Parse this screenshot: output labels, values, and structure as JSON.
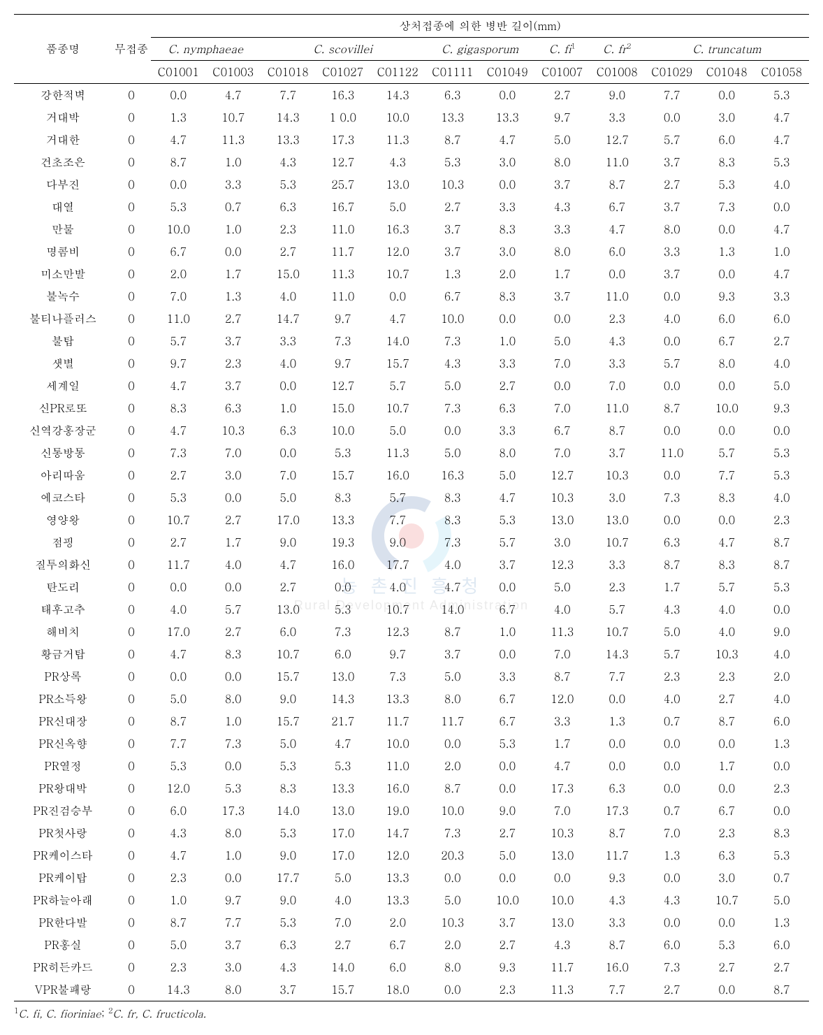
{
  "header": {
    "top_title": "상처접종에 의한 병반 길이(mm)",
    "col_variety": "품종명",
    "col_control": "무접종",
    "species": [
      {
        "label": "C. nymphaeae",
        "span": 2,
        "sup": ""
      },
      {
        "label": "C. scovillei",
        "span": 3,
        "sup": ""
      },
      {
        "label": "C. gigasporum",
        "span": 2,
        "sup": ""
      },
      {
        "label": "C. fi",
        "span": 1,
        "sup": "1"
      },
      {
        "label": "C. fr",
        "span": 1,
        "sup": "2"
      },
      {
        "label": "C. truncatum",
        "span": 3,
        "sup": ""
      }
    ],
    "codes": [
      "C01001",
      "C01003",
      "C01018",
      "C01027",
      "C01122",
      "C01111",
      "C01049",
      "C01007",
      "C01008",
      "C01029",
      "C01048",
      "C01058"
    ]
  },
  "rows": [
    {
      "name": "강한적벽",
      "ctrl": "0",
      "v": [
        "0.0",
        "4.7",
        "7.7",
        "16.3",
        "14.3",
        "6.3",
        "0.0",
        "2.7",
        "9.0",
        "7.7",
        "0.0",
        "5.3"
      ]
    },
    {
      "name": "거대박",
      "ctrl": "0",
      "v": [
        "1.3",
        "10.7",
        "14.3",
        "1 0.0",
        "10.0",
        "13.3",
        "13.3",
        "9.7",
        "3.3",
        "0.0",
        "3.0",
        "4.7"
      ]
    },
    {
      "name": "거대한",
      "ctrl": "0",
      "v": [
        "4.7",
        "11.3",
        "13.3",
        "17.3",
        "11.3",
        "8.7",
        "4.7",
        "5.0",
        "12.7",
        "5.7",
        "6.0",
        "4.7"
      ]
    },
    {
      "name": "건초조은",
      "ctrl": "0",
      "v": [
        "8.7",
        "1.0",
        "4.3",
        "12.7",
        "4.3",
        "5.3",
        "3.0",
        "8.0",
        "11.0",
        "3.7",
        "8.3",
        "5.3"
      ]
    },
    {
      "name": "다부진",
      "ctrl": "0",
      "v": [
        "0.0",
        "3.3",
        "5.3",
        "25.7",
        "13.0",
        "10.3",
        "0.0",
        "3.7",
        "8.7",
        "2.7",
        "5.3",
        "4.0"
      ]
    },
    {
      "name": "대열",
      "ctrl": "0",
      "v": [
        "5.3",
        "0.7",
        "6.3",
        "16.7",
        "5.0",
        "2.7",
        "3.3",
        "4.3",
        "6.7",
        "3.7",
        "7.3",
        "0.0"
      ]
    },
    {
      "name": "만물",
      "ctrl": "0",
      "v": [
        "10.0",
        "1.0",
        "2.3",
        "11.0",
        "16.3",
        "3.7",
        "8.3",
        "3.3",
        "4.7",
        "8.0",
        "0.0",
        "4.7"
      ]
    },
    {
      "name": "명콤비",
      "ctrl": "0",
      "v": [
        "6.7",
        "0.0",
        "2.7",
        "11.7",
        "12.0",
        "3.7",
        "3.0",
        "8.0",
        "6.0",
        "3.3",
        "1.3",
        "1.0"
      ]
    },
    {
      "name": "미소만발",
      "ctrl": "0",
      "v": [
        "2.0",
        "1.7",
        "15.0",
        "11.3",
        "10.7",
        "1.3",
        "2.0",
        "1.7",
        "0.0",
        "3.7",
        "0.0",
        "4.7"
      ]
    },
    {
      "name": "불녹수",
      "ctrl": "0",
      "v": [
        "7.0",
        "1.3",
        "4.0",
        "11.0",
        "0.0",
        "6.7",
        "8.3",
        "3.7",
        "11.0",
        "0.0",
        "9.3",
        "3.3"
      ]
    },
    {
      "name": "불티나플러스",
      "ctrl": "0",
      "v": [
        "11.0",
        "2.7",
        "14.7",
        "9.7",
        "4.7",
        "10.0",
        "0.0",
        "0.0",
        "2.3",
        "4.0",
        "6.0",
        "6.0"
      ]
    },
    {
      "name": "불탑",
      "ctrl": "0",
      "v": [
        "5.7",
        "3.7",
        "3.3",
        "7.3",
        "14.0",
        "7.3",
        "1.0",
        "5.0",
        "4.3",
        "0.0",
        "6.7",
        "2.7"
      ]
    },
    {
      "name": "샛별",
      "ctrl": "0",
      "v": [
        "9.7",
        "2.3",
        "4.0",
        "9.7",
        "15.7",
        "4.3",
        "3.3",
        "7.0",
        "3.3",
        "5.7",
        "8.0",
        "4.0"
      ]
    },
    {
      "name": "세계일",
      "ctrl": "0",
      "v": [
        "4.7",
        "3.7",
        "0.0",
        "12.7",
        "5.7",
        "5.0",
        "2.7",
        "0.0",
        "7.0",
        "0.0",
        "0.0",
        "5.0"
      ]
    },
    {
      "name": "신PR로또",
      "ctrl": "0",
      "v": [
        "8.3",
        "6.3",
        "1.0",
        "15.0",
        "10.7",
        "7.3",
        "6.3",
        "7.0",
        "11.0",
        "8.7",
        "10.0",
        "9.3"
      ]
    },
    {
      "name": "신역강홍장군",
      "ctrl": "0",
      "v": [
        "4.7",
        "10.3",
        "6.3",
        "10.0",
        "5.0",
        "0.0",
        "3.3",
        "6.7",
        "8.7",
        "0.0",
        "0.0",
        "0.0"
      ]
    },
    {
      "name": "신통방통",
      "ctrl": "0",
      "v": [
        "7.3",
        "7.0",
        "0.0",
        "5.3",
        "11.3",
        "5.0",
        "8.0",
        "7.0",
        "3.7",
        "11.0",
        "5.7",
        "5.3"
      ]
    },
    {
      "name": "아리따움",
      "ctrl": "0",
      "v": [
        "2.7",
        "3.0",
        "7.0",
        "15.7",
        "16.0",
        "16.3",
        "5.0",
        "12.7",
        "10.3",
        "0.0",
        "7.7",
        "5.3"
      ]
    },
    {
      "name": "에코스타",
      "ctrl": "0",
      "v": [
        "5.3",
        "0.0",
        "5.0",
        "8.3",
        "5.7",
        "8.3",
        "4.7",
        "10.3",
        "3.0",
        "7.3",
        "8.3",
        "4.0"
      ]
    },
    {
      "name": "영양왕",
      "ctrl": "0",
      "v": [
        "10.7",
        "2.7",
        "17.0",
        "13.3",
        "7.7",
        "8.3",
        "5.3",
        "13.0",
        "13.0",
        "0.0",
        "0.0",
        "2.3"
      ]
    },
    {
      "name": "점핑",
      "ctrl": "0",
      "v": [
        "2.7",
        "1.7",
        "9.0",
        "19.3",
        "9.0",
        "7.3",
        "5.7",
        "3.0",
        "10.7",
        "6.3",
        "4.7",
        "8.7"
      ]
    },
    {
      "name": "질투의화신",
      "ctrl": "0",
      "v": [
        "11.7",
        "4.0",
        "4.7",
        "16.0",
        "17.7",
        "4.0",
        "3.7",
        "12.3",
        "3.3",
        "8.7",
        "8.3",
        "8.7"
      ]
    },
    {
      "name": "탄도리",
      "ctrl": "0",
      "v": [
        "0.0",
        "0.0",
        "2.7",
        "0.0",
        "4.0",
        "4.7",
        "0.0",
        "5.0",
        "2.3",
        "1.7",
        "5.7",
        "5.3"
      ]
    },
    {
      "name": "태후고추",
      "ctrl": "0",
      "v": [
        "4.0",
        "5.7",
        "13.0",
        "5.3",
        "10.7",
        "14.0",
        "6.7",
        "4.0",
        "5.7",
        "4.3",
        "4.0",
        "0.0"
      ]
    },
    {
      "name": "해비치",
      "ctrl": "0",
      "v": [
        "17.0",
        "2.7",
        "6.0",
        "7.3",
        "12.3",
        "8.7",
        "1.0",
        "11.3",
        "10.7",
        "5.0",
        "4.0",
        "9.0"
      ]
    },
    {
      "name": "황금거탑",
      "ctrl": "0",
      "v": [
        "4.7",
        "8.3",
        "10.7",
        "6.0",
        "9.7",
        "3.7",
        "0.0",
        "7.0",
        "14.3",
        "5.7",
        "10.3",
        "4.0"
      ]
    },
    {
      "name": "PR상록",
      "ctrl": "0",
      "v": [
        "0.0",
        "0.0",
        "15.7",
        "13.0",
        "7.3",
        "5.0",
        "3.3",
        "8.7",
        "7.7",
        "2.3",
        "2.3",
        "2.0"
      ]
    },
    {
      "name": "PR소득왕",
      "ctrl": "0",
      "v": [
        "5.0",
        "8.0",
        "9.0",
        "14.3",
        "13.3",
        "8.0",
        "6.7",
        "12.0",
        "0.0",
        "4.0",
        "2.7",
        "4.0"
      ]
    },
    {
      "name": "PR신대장",
      "ctrl": "0",
      "v": [
        "8.7",
        "1.0",
        "15.7",
        "21.7",
        "11.7",
        "11.7",
        "6.7",
        "3.3",
        "1.3",
        "0.7",
        "8.7",
        "6.0"
      ]
    },
    {
      "name": "PR신옥향",
      "ctrl": "0",
      "v": [
        "7.7",
        "7.3",
        "5.0",
        "4.7",
        "10.0",
        "0.0",
        "5.3",
        "1.7",
        "0.0",
        "0.0",
        "0.0",
        "1.3"
      ]
    },
    {
      "name": "PR열정",
      "ctrl": "0",
      "v": [
        "5.3",
        "0.0",
        "5.3",
        "5.3",
        "11.0",
        "2.0",
        "0.0",
        "4.7",
        "0.0",
        "0.0",
        "1.7",
        "0.0"
      ]
    },
    {
      "name": "PR왕대박",
      "ctrl": "0",
      "v": [
        "12.0",
        "5.3",
        "8.3",
        "13.3",
        "16.0",
        "8.7",
        "0.0",
        "17.3",
        "6.3",
        "0.0",
        "0.0",
        "2.3"
      ]
    },
    {
      "name": "PR진검승부",
      "ctrl": "0",
      "v": [
        "6.0",
        "17.3",
        "14.0",
        "13.0",
        "19.0",
        "10.0",
        "9.0",
        "7.0",
        "17.3",
        "0.7",
        "6.7",
        "0.0"
      ]
    },
    {
      "name": "PR첫사랑",
      "ctrl": "0",
      "v": [
        "4.3",
        "8.0",
        "5.3",
        "17.0",
        "14.7",
        "7.3",
        "2.7",
        "10.3",
        "8.7",
        "7.0",
        "2.3",
        "8.3"
      ]
    },
    {
      "name": "PR케이스타",
      "ctrl": "0",
      "v": [
        "4.7",
        "1.0",
        "9.0",
        "17.0",
        "12.0",
        "20.3",
        "5.0",
        "13.0",
        "11.7",
        "1.3",
        "6.3",
        "5.3"
      ]
    },
    {
      "name": "PR케이탑",
      "ctrl": "0",
      "v": [
        "2.3",
        "0.0",
        "17.7",
        "5.0",
        "13.3",
        "0.0",
        "0.0",
        "0.0",
        "9.3",
        "0.0",
        "3.0",
        "0.7"
      ]
    },
    {
      "name": "PR하늘아래",
      "ctrl": "0",
      "v": [
        "1.0",
        "9.7",
        "9.0",
        "4.0",
        "13.3",
        "5.0",
        "10.0",
        "10.0",
        "4.3",
        "4.3",
        "10.7",
        "5.0"
      ]
    },
    {
      "name": "PR한다발",
      "ctrl": "0",
      "v": [
        "8.7",
        "7.7",
        "5.3",
        "7.0",
        "2.0",
        "10.3",
        "3.7",
        "13.0",
        "3.3",
        "0.0",
        "0.0",
        "1.3"
      ]
    },
    {
      "name": "PR홍실",
      "ctrl": "0",
      "v": [
        "5.0",
        "3.7",
        "6.3",
        "2.7",
        "6.7",
        "2.0",
        "2.7",
        "4.3",
        "8.7",
        "6.0",
        "5.3",
        "6.0"
      ]
    },
    {
      "name": "PR히든카드",
      "ctrl": "0",
      "v": [
        "2.3",
        "3.0",
        "4.3",
        "14.0",
        "6.0",
        "8.0",
        "9.3",
        "11.7",
        "16.0",
        "7.3",
        "2.7",
        "2.7"
      ]
    },
    {
      "name": "VPR불패랑",
      "ctrl": "0",
      "v": [
        "14.3",
        "8.0",
        "3.7",
        "15.7",
        "18.0",
        "0.0",
        "2.3",
        "11.3",
        "7.7",
        "2.7",
        "0.0",
        "8.7"
      ]
    }
  ],
  "footnote": {
    "sup1": "1",
    "t1a": "C. fi, C. fioriniae",
    "sep": "; ",
    "sup2": "2",
    "t2a": "C. fr, C. fructicola."
  },
  "watermark": {
    "line1": "농 촌 진 흥 청",
    "line2": "Rural Development Administration"
  }
}
